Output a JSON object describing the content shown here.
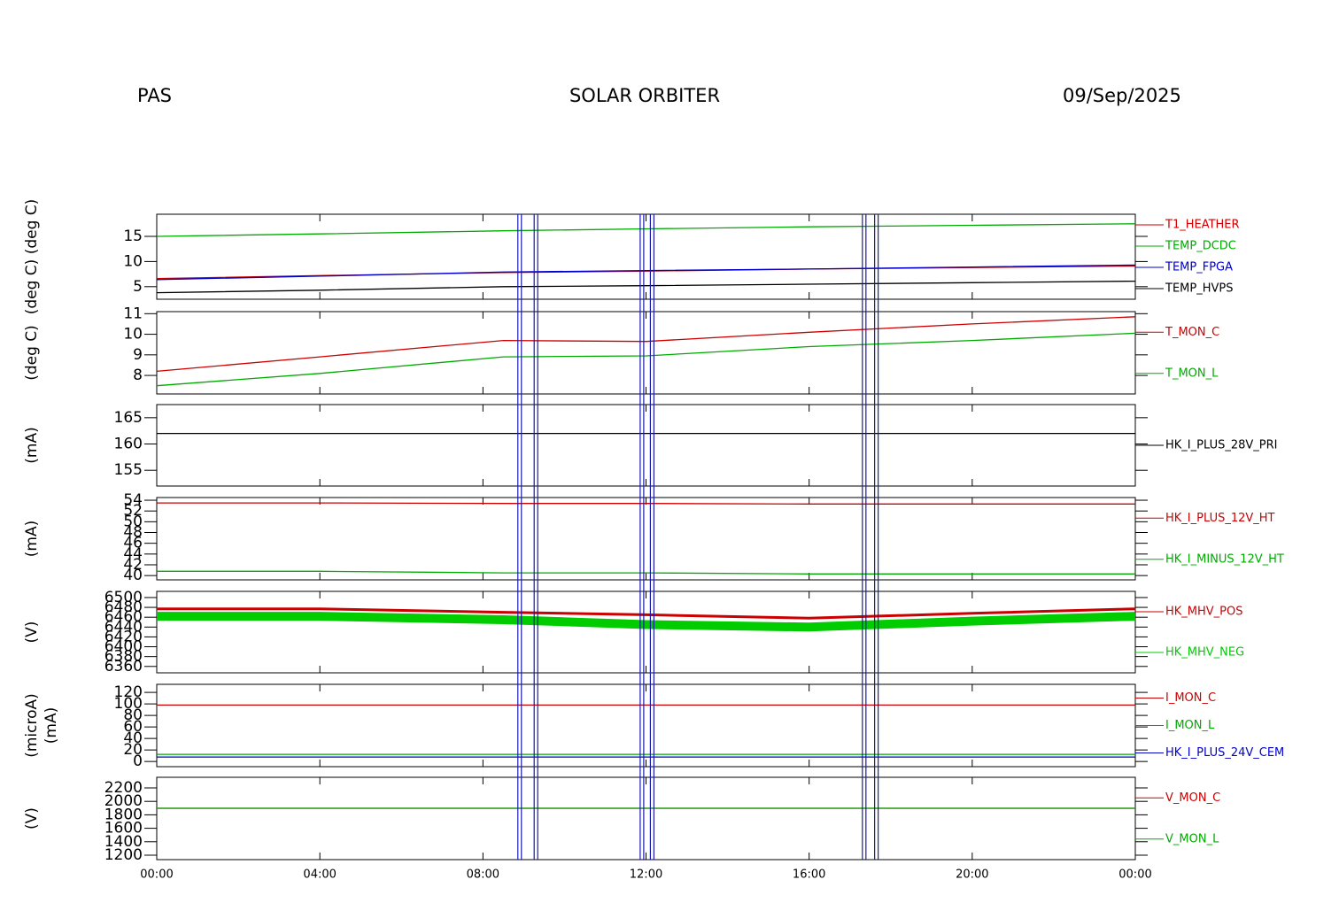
{
  "header": {
    "left": "PAS",
    "center": "SOLAR ORBITER",
    "right": "09/Sep/2025"
  },
  "events": [
    8.9,
    9.3,
    11.9,
    12.15,
    17.35,
    17.65
  ],
  "chart_data": [
    {
      "type": "line",
      "ylabel": [
        "(deg C) (deg C)"
      ],
      "xlim": [
        0,
        24
      ],
      "ylim": [
        2.5,
        19.4
      ],
      "yticks": [
        5,
        10,
        15
      ],
      "x": [
        0,
        4,
        8.5,
        12,
        16,
        20,
        24
      ],
      "series": [
        {
          "name": "T1_HEATHER",
          "color": "#cc0000",
          "values": [
            6.6,
            7.2,
            7.8,
            8.1,
            8.5,
            8.8,
            9.1
          ]
        },
        {
          "name": "TEMP_DCDC",
          "color": "#00aa00",
          "values": [
            15.0,
            15.5,
            16.1,
            16.5,
            16.9,
            17.2,
            17.5
          ]
        },
        {
          "name": "TEMP_FPGA",
          "color": "#0000cc",
          "values": [
            6.4,
            7.1,
            7.9,
            8.2,
            8.5,
            8.9,
            9.3
          ]
        },
        {
          "name": "TEMP_HVPS",
          "color": "#000000",
          "values": [
            3.8,
            4.3,
            5.0,
            5.2,
            5.5,
            5.8,
            6.1
          ]
        }
      ]
    },
    {
      "type": "line",
      "ylabel": [
        "(deg C)"
      ],
      "xlim": [
        0,
        24
      ],
      "ylim": [
        7.1,
        11.1
      ],
      "yticks": [
        8,
        9,
        10,
        11
      ],
      "x": [
        0,
        4,
        8.5,
        12,
        16,
        20,
        24
      ],
      "series": [
        {
          "name": "T_MON_C",
          "color": "#cc0000",
          "values": [
            8.2,
            8.9,
            9.7,
            9.65,
            10.1,
            10.5,
            10.85
          ]
        },
        {
          "name": "T_MON_L",
          "color": "#00aa00",
          "values": [
            7.5,
            8.1,
            8.9,
            8.95,
            9.4,
            9.7,
            10.05
          ]
        }
      ]
    },
    {
      "type": "line",
      "ylabel": [
        "(mA)"
      ],
      "xlim": [
        0,
        24
      ],
      "ylim": [
        152,
        167.5
      ],
      "yticks": [
        155,
        160,
        165
      ],
      "x": [
        0,
        4,
        8.5,
        12,
        16,
        20,
        24
      ],
      "series": [
        {
          "name": "HK_I_PLUS_28V_PRI",
          "color": "#000000",
          "values": [
            162,
            162,
            162,
            162,
            162,
            162,
            162
          ]
        }
      ]
    },
    {
      "type": "line",
      "ylabel": [
        "(mA)"
      ],
      "xlim": [
        0,
        24
      ],
      "ylim": [
        39.2,
        54.5
      ],
      "yticks": [
        40,
        42,
        44,
        46,
        48,
        50,
        52,
        54
      ],
      "x": [
        0,
        4,
        8.5,
        12,
        16,
        20,
        24
      ],
      "series": [
        {
          "name": "HK_I_PLUS_12V_HT",
          "color": "#cc0000",
          "values": [
            53.5,
            53.5,
            53.4,
            53.4,
            53.3,
            53.3,
            53.3
          ]
        },
        {
          "name": "HK_I_MINUS_12V_HT",
          "color": "#00aa00",
          "values": [
            40.8,
            40.8,
            40.5,
            40.5,
            40.3,
            40.3,
            40.3
          ]
        }
      ]
    },
    {
      "type": "line",
      "ylabel": [
        "(V)"
      ],
      "xlim": [
        0,
        24
      ],
      "ylim": [
        6347,
        6512.5
      ],
      "yticks": [
        6360,
        6380,
        6400,
        6420,
        6440,
        6460,
        6480,
        6500
      ],
      "x": [
        0,
        4,
        8.5,
        12,
        16,
        20,
        24
      ],
      "series": [
        {
          "name": "HK_MHV_POS",
          "color": "#cc0000",
          "values": [
            6477,
            6477,
            6470,
            6465,
            6458,
            6468,
            6477
          ]
        },
        {
          "name": "HK_MHV_NEG",
          "color": "#00cc00",
          "values": [
            6462,
            6462,
            6455,
            6445,
            6440,
            6452,
            6462
          ]
        }
      ]
    },
    {
      "type": "line",
      "ylabel": [
        "(microA)",
        "(mA)"
      ],
      "xlim": [
        0,
        24
      ],
      "ylim": [
        -9,
        134
      ],
      "yticks": [
        0,
        20,
        40,
        60,
        80,
        100,
        120
      ],
      "x": [
        0,
        4,
        8.5,
        12,
        16,
        20,
        24
      ],
      "series": [
        {
          "name": "I_MON_C",
          "color": "#cc0000",
          "values": [
            98,
            98,
            98,
            98,
            98,
            98,
            98
          ]
        },
        {
          "name": "I_MON_L",
          "color": "#00aa00",
          "values": [
            12.3,
            12.3,
            12.3,
            12.3,
            12.3,
            12.3,
            12.3
          ]
        },
        {
          "name": "HK_I_PLUS_24V_CEM",
          "color": "#0000cc",
          "values": [
            7.7,
            7.7,
            7.7,
            7.7,
            7.7,
            7.7,
            7.7
          ]
        }
      ]
    },
    {
      "type": "line",
      "ylabel": [
        "(V)"
      ],
      "xlim": [
        0,
        24
      ],
      "ylim": [
        1134,
        2358
      ],
      "yticks": [
        1200,
        1400,
        1600,
        1800,
        2000,
        2200
      ],
      "x": [
        0,
        4,
        8.5,
        12,
        16,
        20,
        24
      ],
      "xticks": [
        {
          "value": 0,
          "label": "00:00"
        },
        {
          "value": 4,
          "label": "04:00"
        },
        {
          "value": 8,
          "label": "08:00"
        },
        {
          "value": 12,
          "label": "12:00"
        },
        {
          "value": 16,
          "label": "16:00"
        },
        {
          "value": 20,
          "label": "20:00"
        },
        {
          "value": 24,
          "label": "00:00"
        }
      ],
      "series": [
        {
          "name": "V_MON_C",
          "color": "#cc0000",
          "values": [
            1897,
            1897,
            1897,
            1897,
            1897,
            1897,
            1897
          ]
        },
        {
          "name": "V_MON_L",
          "color": "#00aa00",
          "values": [
            1897,
            1897,
            1897,
            1897,
            1897,
            1897,
            1897
          ]
        }
      ]
    }
  ]
}
